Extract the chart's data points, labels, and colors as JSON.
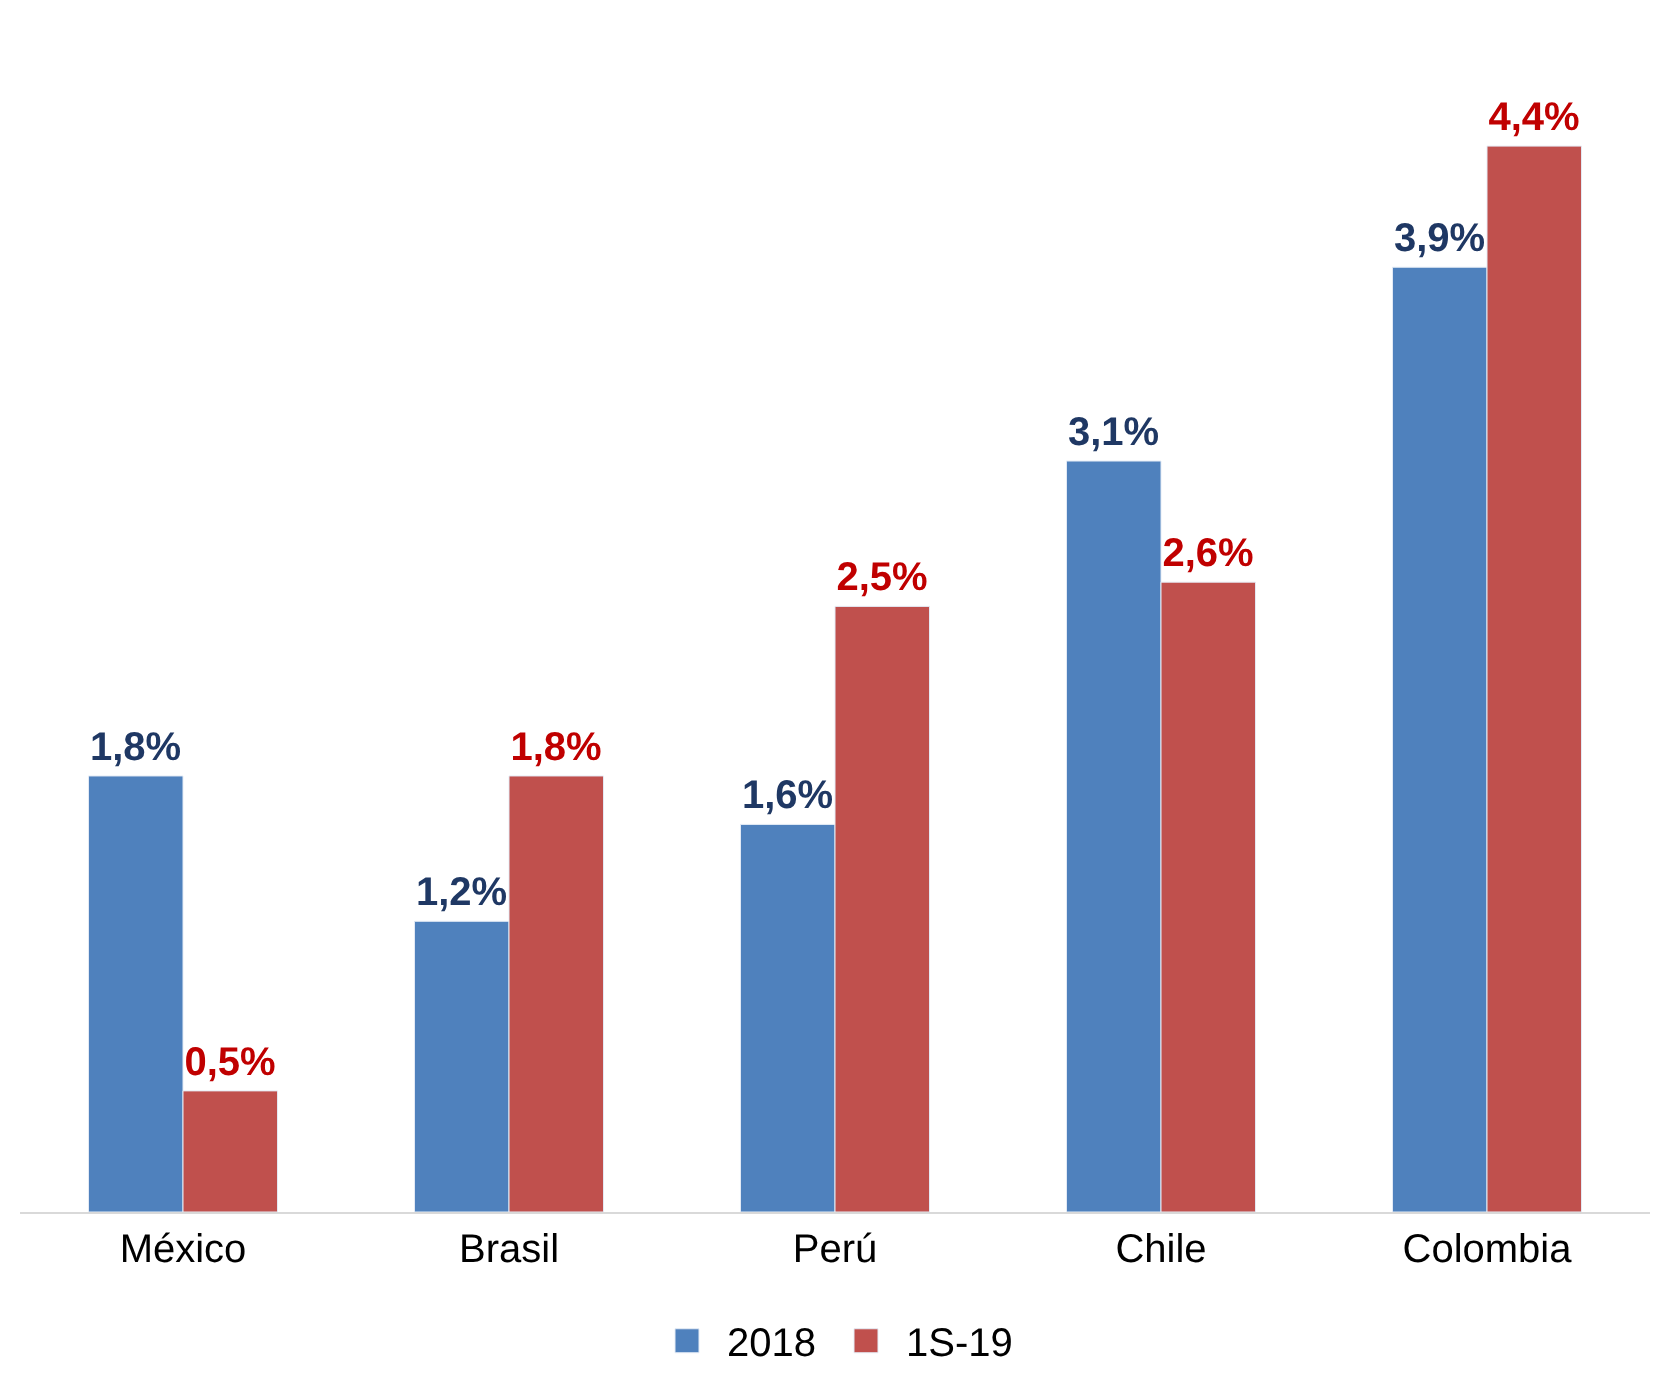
{
  "chart_data": {
    "type": "bar",
    "categories": [
      "México",
      "Brasil",
      "Perú",
      "Chile",
      "Colombia"
    ],
    "series": [
      {
        "name": "2018",
        "color": "#4f81bd",
        "values": [
          1.8,
          1.2,
          1.6,
          3.1,
          3.9
        ],
        "value_labels": [
          "1,8%",
          "1,2%",
          "1,6%",
          "3,1%",
          "3,9%"
        ]
      },
      {
        "name": "1S-19",
        "color": "#c0504d",
        "values": [
          0.5,
          1.8,
          2.5,
          2.6,
          4.4
        ],
        "value_labels": [
          "0,5%",
          "1,8%",
          "2,5%",
          "2,6%",
          "4,4%"
        ]
      }
    ],
    "legend": "bottom",
    "tick_labels": "x"
  }
}
